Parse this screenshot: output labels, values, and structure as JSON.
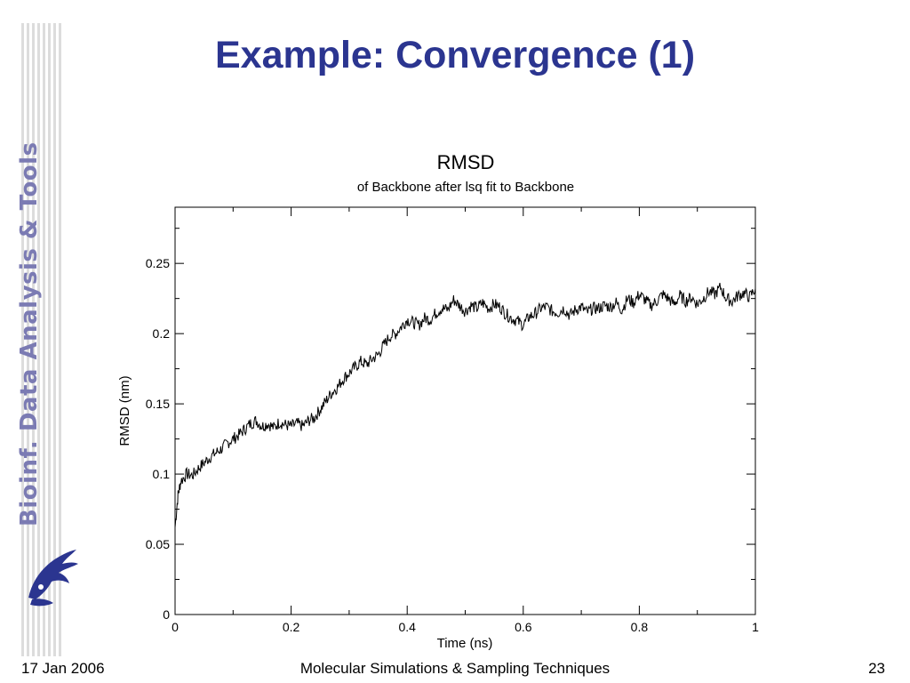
{
  "slide": {
    "title": "Example: Convergence (1)",
    "sidebar_text": "Bioinf. Data Analysis & Tools",
    "footer_date": "17 Jan 2006",
    "footer_course": "Molecular Simulations & Sampling Techniques",
    "page_number": "23"
  },
  "colors": {
    "title": "#2b3590",
    "sidebar_text": "#7b7bb3",
    "logo": "#2b3590"
  },
  "icons": {
    "logo": "griffin-logo-icon"
  },
  "chart_data": {
    "type": "line",
    "title": "RMSD",
    "subtitle": "of Backbone after lsq fit to Backbone",
    "xlabel": "Time (ns)",
    "ylabel": "RMSD (nm)",
    "xlim": [
      0,
      1
    ],
    "ylim": [
      0,
      0.29
    ],
    "xticks": [
      "0",
      "0.2",
      "0.4",
      "0.6",
      "0.8",
      "1"
    ],
    "yticks": [
      "0",
      "0.05",
      "0.1",
      "0.15",
      "0.2",
      "0.25"
    ],
    "grid": false,
    "series": [
      {
        "x": [
          0,
          0.005,
          0.01,
          0.02,
          0.03,
          0.04,
          0.05,
          0.06,
          0.07,
          0.08,
          0.09,
          0.1,
          0.11,
          0.12,
          0.13,
          0.14,
          0.15,
          0.16,
          0.17,
          0.18,
          0.19,
          0.2,
          0.21,
          0.22,
          0.23,
          0.24,
          0.25,
          0.26,
          0.27,
          0.28,
          0.29,
          0.3,
          0.31,
          0.32,
          0.33,
          0.34,
          0.35,
          0.36,
          0.37,
          0.38,
          0.39,
          0.4,
          0.41,
          0.42,
          0.43,
          0.44,
          0.45,
          0.46,
          0.47,
          0.48,
          0.49,
          0.5,
          0.51,
          0.52,
          0.53,
          0.54,
          0.55,
          0.56,
          0.57,
          0.58,
          0.59,
          0.6,
          0.61,
          0.62,
          0.63,
          0.64,
          0.65,
          0.66,
          0.67,
          0.68,
          0.69,
          0.7,
          0.71,
          0.72,
          0.73,
          0.74,
          0.75,
          0.76,
          0.77,
          0.78,
          0.79,
          0.8,
          0.81,
          0.82,
          0.83,
          0.84,
          0.85,
          0.86,
          0.87,
          0.88,
          0.89,
          0.9,
          0.91,
          0.92,
          0.93,
          0.94,
          0.95,
          0.96,
          0.97,
          0.98,
          0.99,
          1.0
        ],
        "y": [
          0.062,
          0.085,
          0.095,
          0.1,
          0.099,
          0.104,
          0.108,
          0.112,
          0.115,
          0.118,
          0.122,
          0.125,
          0.128,
          0.132,
          0.136,
          0.138,
          0.134,
          0.136,
          0.133,
          0.137,
          0.135,
          0.134,
          0.136,
          0.134,
          0.138,
          0.14,
          0.146,
          0.152,
          0.158,
          0.162,
          0.168,
          0.172,
          0.176,
          0.18,
          0.178,
          0.182,
          0.185,
          0.192,
          0.198,
          0.2,
          0.205,
          0.21,
          0.208,
          0.206,
          0.211,
          0.21,
          0.215,
          0.218,
          0.217,
          0.224,
          0.22,
          0.216,
          0.22,
          0.218,
          0.222,
          0.218,
          0.221,
          0.219,
          0.214,
          0.211,
          0.209,
          0.206,
          0.212,
          0.214,
          0.218,
          0.219,
          0.216,
          0.215,
          0.218,
          0.213,
          0.217,
          0.219,
          0.215,
          0.218,
          0.218,
          0.22,
          0.219,
          0.222,
          0.217,
          0.225,
          0.222,
          0.228,
          0.224,
          0.22,
          0.223,
          0.228,
          0.225,
          0.221,
          0.227,
          0.223,
          0.226,
          0.221,
          0.225,
          0.23,
          0.228,
          0.233,
          0.225,
          0.223,
          0.227,
          0.229,
          0.226,
          0.232
        ]
      }
    ]
  }
}
